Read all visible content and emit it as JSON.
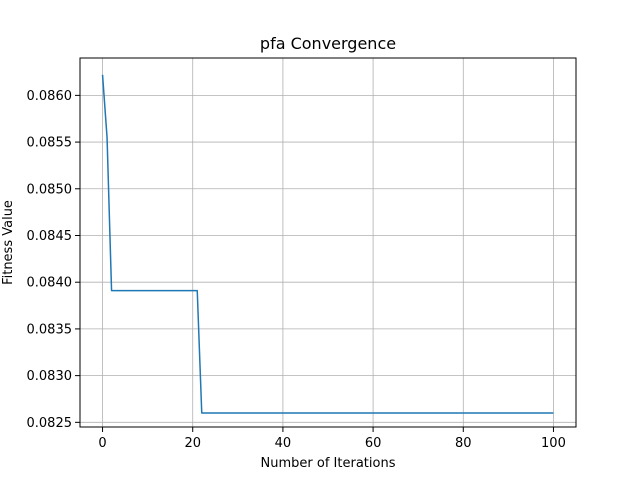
{
  "chart_data": {
    "type": "line",
    "title": "pfa Convergence",
    "xlabel": "Number of Iterations",
    "ylabel": "Fitness Value",
    "xlim": [
      -5,
      105
    ],
    "ylim": [
      0.08245,
      0.0864
    ],
    "xticks": [
      0,
      20,
      40,
      60,
      80,
      100
    ],
    "yticks": [
      0.0825,
      0.083,
      0.0835,
      0.084,
      0.0845,
      0.085,
      0.0855,
      0.086
    ],
    "xtick_labels": [
      "0",
      "20",
      "40",
      "60",
      "80",
      "100"
    ],
    "ytick_labels": [
      "0.0825",
      "0.0830",
      "0.0835",
      "0.0840",
      "0.0845",
      "0.0850",
      "0.0855",
      "0.0860"
    ],
    "grid": true,
    "series": [
      {
        "color": "#1f77b4",
        "x": [
          0,
          1,
          2,
          3,
          4,
          5,
          6,
          7,
          8,
          9,
          10,
          11,
          12,
          13,
          14,
          15,
          16,
          17,
          18,
          19,
          20,
          21,
          22,
          23,
          24,
          25,
          26,
          27,
          28,
          29,
          30,
          31,
          32,
          33,
          34,
          35,
          36,
          37,
          38,
          39,
          40,
          41,
          42,
          43,
          44,
          45,
          46,
          47,
          48,
          49,
          50,
          51,
          52,
          53,
          54,
          55,
          56,
          57,
          58,
          59,
          60,
          61,
          62,
          63,
          64,
          65,
          66,
          67,
          68,
          69,
          70,
          71,
          72,
          73,
          74,
          75,
          76,
          77,
          78,
          79,
          80,
          81,
          82,
          83,
          84,
          85,
          86,
          87,
          88,
          89,
          90,
          91,
          92,
          93,
          94,
          95,
          96,
          97,
          98,
          99,
          100
        ],
        "y": [
          0.08622,
          0.08555,
          0.08391,
          0.08391,
          0.08391,
          0.08391,
          0.08391,
          0.08391,
          0.08391,
          0.08391,
          0.08391,
          0.08391,
          0.08391,
          0.08391,
          0.08391,
          0.08391,
          0.08391,
          0.08391,
          0.08391,
          0.08391,
          0.08391,
          0.08391,
          0.0826,
          0.0826,
          0.0826,
          0.0826,
          0.0826,
          0.0826,
          0.0826,
          0.0826,
          0.0826,
          0.0826,
          0.0826,
          0.0826,
          0.0826,
          0.0826,
          0.0826,
          0.0826,
          0.0826,
          0.0826,
          0.0826,
          0.0826,
          0.0826,
          0.0826,
          0.0826,
          0.0826,
          0.0826,
          0.0826,
          0.0826,
          0.0826,
          0.0826,
          0.0826,
          0.0826,
          0.0826,
          0.0826,
          0.0826,
          0.0826,
          0.0826,
          0.0826,
          0.0826,
          0.0826,
          0.0826,
          0.0826,
          0.0826,
          0.0826,
          0.0826,
          0.0826,
          0.0826,
          0.0826,
          0.0826,
          0.0826,
          0.0826,
          0.0826,
          0.0826,
          0.0826,
          0.0826,
          0.0826,
          0.0826,
          0.0826,
          0.0826,
          0.0826,
          0.0826,
          0.0826,
          0.0826,
          0.0826,
          0.0826,
          0.0826,
          0.0826,
          0.0826,
          0.0826,
          0.0826,
          0.0826,
          0.0826,
          0.0826,
          0.0826,
          0.0826,
          0.0826,
          0.0826,
          0.0826,
          0.0826,
          0.0826
        ]
      }
    ]
  }
}
